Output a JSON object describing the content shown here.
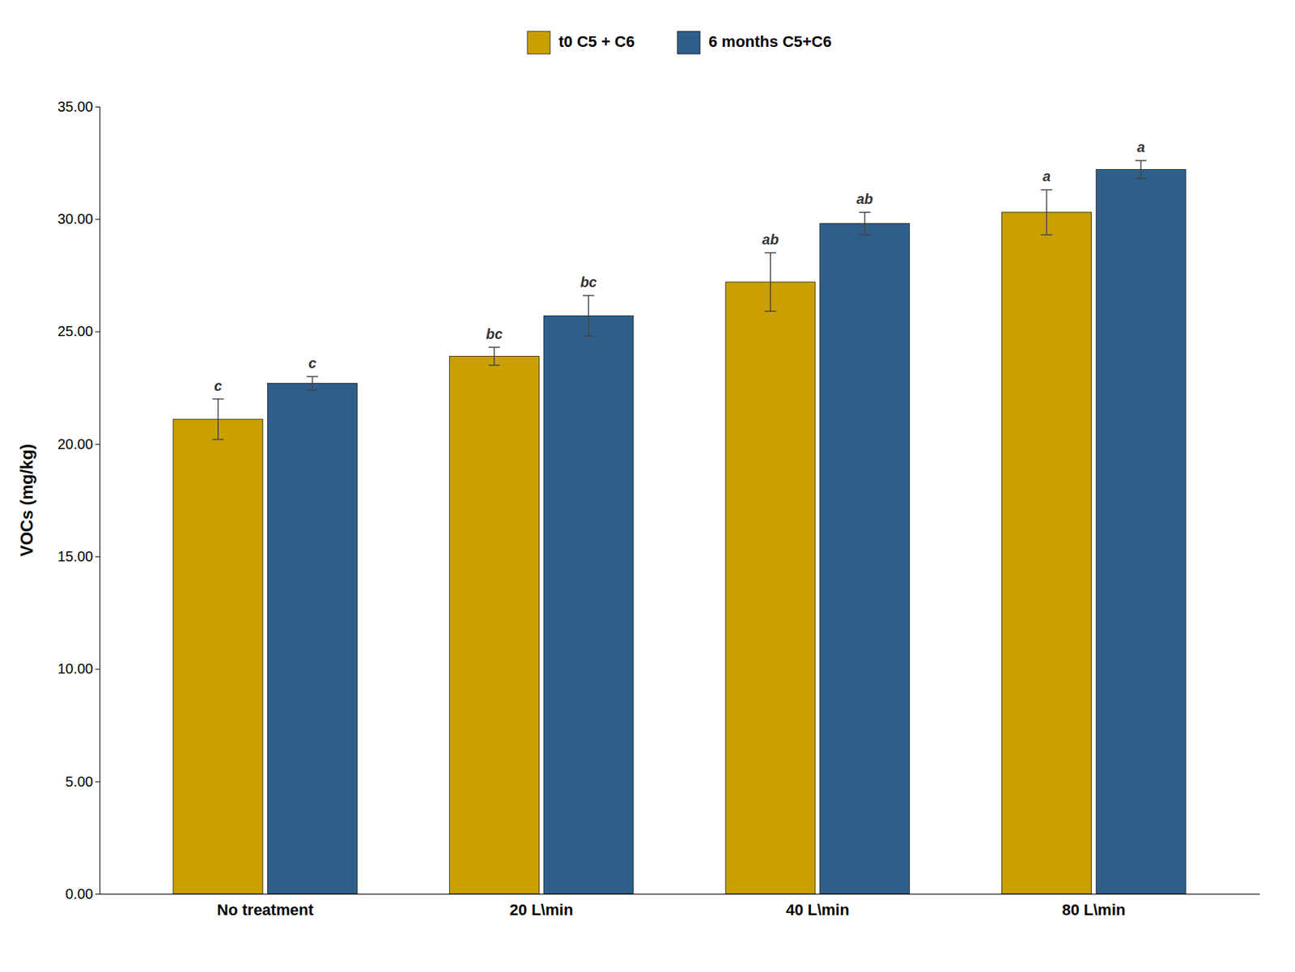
{
  "chart_data": {
    "type": "bar",
    "categories": [
      "No treatment",
      "20 L\\min",
      "40 L\\min",
      "80 L\\min"
    ],
    "series": [
      {
        "name": "t0  C5 + C6",
        "color": "#C9A000",
        "values": [
          21.1,
          23.9,
          27.2,
          30.3
        ],
        "errors": [
          0.9,
          0.4,
          1.3,
          1.0
        ],
        "annotations": [
          "c",
          "bc",
          "ab",
          "a"
        ]
      },
      {
        "name": "6 months C5+C6",
        "color": "#2E5F8A",
        "values": [
          22.7,
          25.7,
          29.8,
          32.2
        ],
        "errors": [
          0.3,
          0.9,
          0.5,
          0.4
        ],
        "annotations": [
          "c",
          "bc",
          "ab",
          "a"
        ]
      }
    ],
    "ylabel": "VOCs (mg/kg)",
    "ylim": [
      0,
      35
    ],
    "yticks": [
      {
        "value": 0,
        "label": "0.00"
      },
      {
        "value": 5,
        "label": "5.00"
      },
      {
        "value": 10,
        "label": "10.00"
      },
      {
        "value": 15,
        "label": "15.00"
      },
      {
        "value": 20,
        "label": "20.00"
      },
      {
        "value": 25,
        "label": "25.00"
      },
      {
        "value": 30,
        "label": "30.00"
      },
      {
        "value": 35,
        "label": "35.00"
      }
    ],
    "grid": false,
    "legend": "top"
  }
}
